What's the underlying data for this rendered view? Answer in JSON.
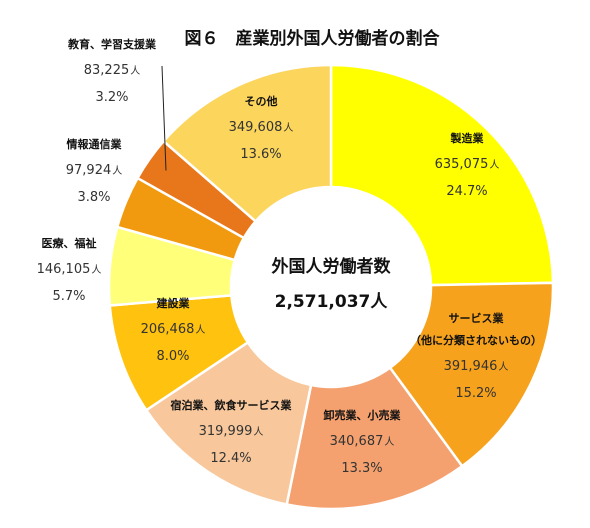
{
  "chart_data": {
    "type": "pie",
    "title": "図６　産業別外国人労働者の割合",
    "center": {
      "label": "外国人労働者数",
      "value": "2,571,037人"
    },
    "unit": "人",
    "slices": [
      {
        "name": "製造業",
        "value": 635075,
        "value_text": "635,075",
        "percent": "24.7%",
        "color": "#FFFF00"
      },
      {
        "name": "サービス業",
        "subname": "（他に分類されないもの）",
        "value": 391946,
        "value_text": "391,946",
        "percent": "15.2%",
        "color": "#F7A21C"
      },
      {
        "name": "卸売業、小売業",
        "value": 340687,
        "value_text": "340,687",
        "percent": "13.3%",
        "color": "#F4A16F"
      },
      {
        "name": "宿泊業、飲食サービス業",
        "value": 319999,
        "value_text": "319,999",
        "percent": "12.4%",
        "color": "#F8C89C"
      },
      {
        "name": "建設業",
        "value": 206468,
        "value_text": "206,468",
        "percent": "8.0%",
        "color": "#FFC20E"
      },
      {
        "name": "医療、福祉",
        "value": 146105,
        "value_text": "146,105",
        "percent": "5.7%",
        "color": "#FFFF7A"
      },
      {
        "name": "情報通信業",
        "value": 97924,
        "value_text": "97,924",
        "percent": "3.8%",
        "color": "#F29A0F"
      },
      {
        "name": "教育、学習支援業",
        "value": 83225,
        "value_text": "83,225",
        "percent": "3.2%",
        "color": "#E8761A"
      },
      {
        "name": "その他",
        "value": 349608,
        "value_text": "349,608",
        "percent": "13.6%",
        "color": "#FBD55C"
      }
    ]
  }
}
